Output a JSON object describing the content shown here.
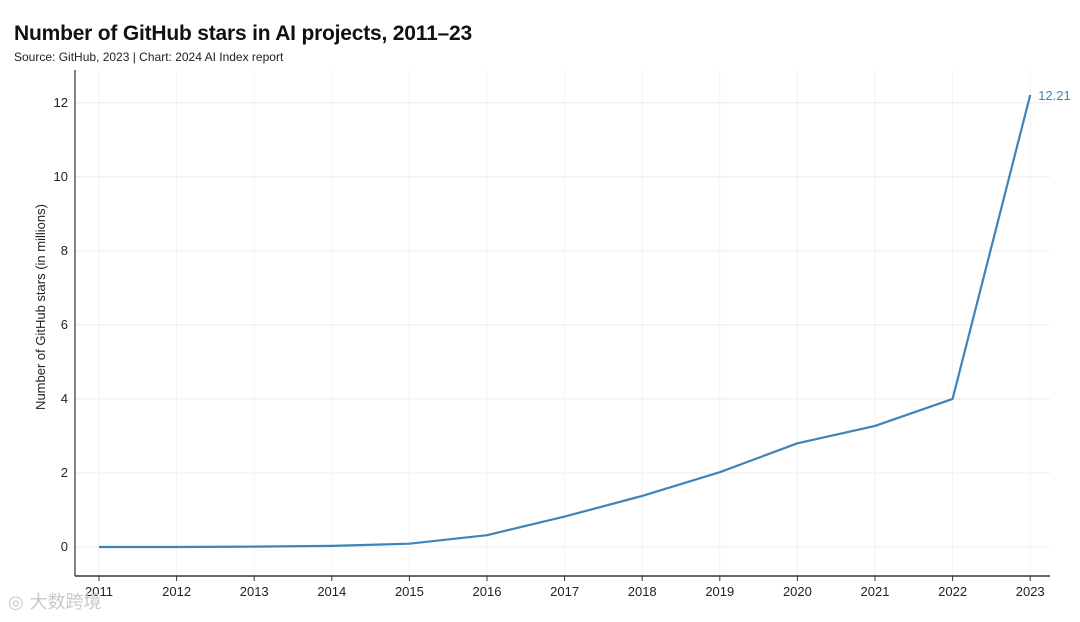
{
  "chart_data": {
    "type": "line",
    "title": "Number of GitHub stars in AI projects, 2011–23",
    "subtitle": "Source: GitHub, 2023 | Chart: 2024 AI Index report",
    "xlabel": "",
    "ylabel": "Number of GitHub stars (in millions)",
    "x": [
      "2011",
      "2012",
      "2013",
      "2014",
      "2015",
      "2016",
      "2017",
      "2018",
      "2019",
      "2020",
      "2021",
      "2022",
      "2023"
    ],
    "series": [
      {
        "values": [
          0.0,
          0.0,
          0.01,
          0.03,
          0.09,
          0.32,
          0.82,
          1.38,
          2.02,
          2.8,
          3.27,
          4.0,
          12.21
        ]
      }
    ],
    "end_label": "12.21",
    "ylim": [
      0,
      12.8
    ],
    "yticks": [
      0,
      2,
      4,
      6,
      8,
      10,
      12
    ],
    "grid": true,
    "line_color": "#3d85b8"
  },
  "watermark": "大数跨境"
}
